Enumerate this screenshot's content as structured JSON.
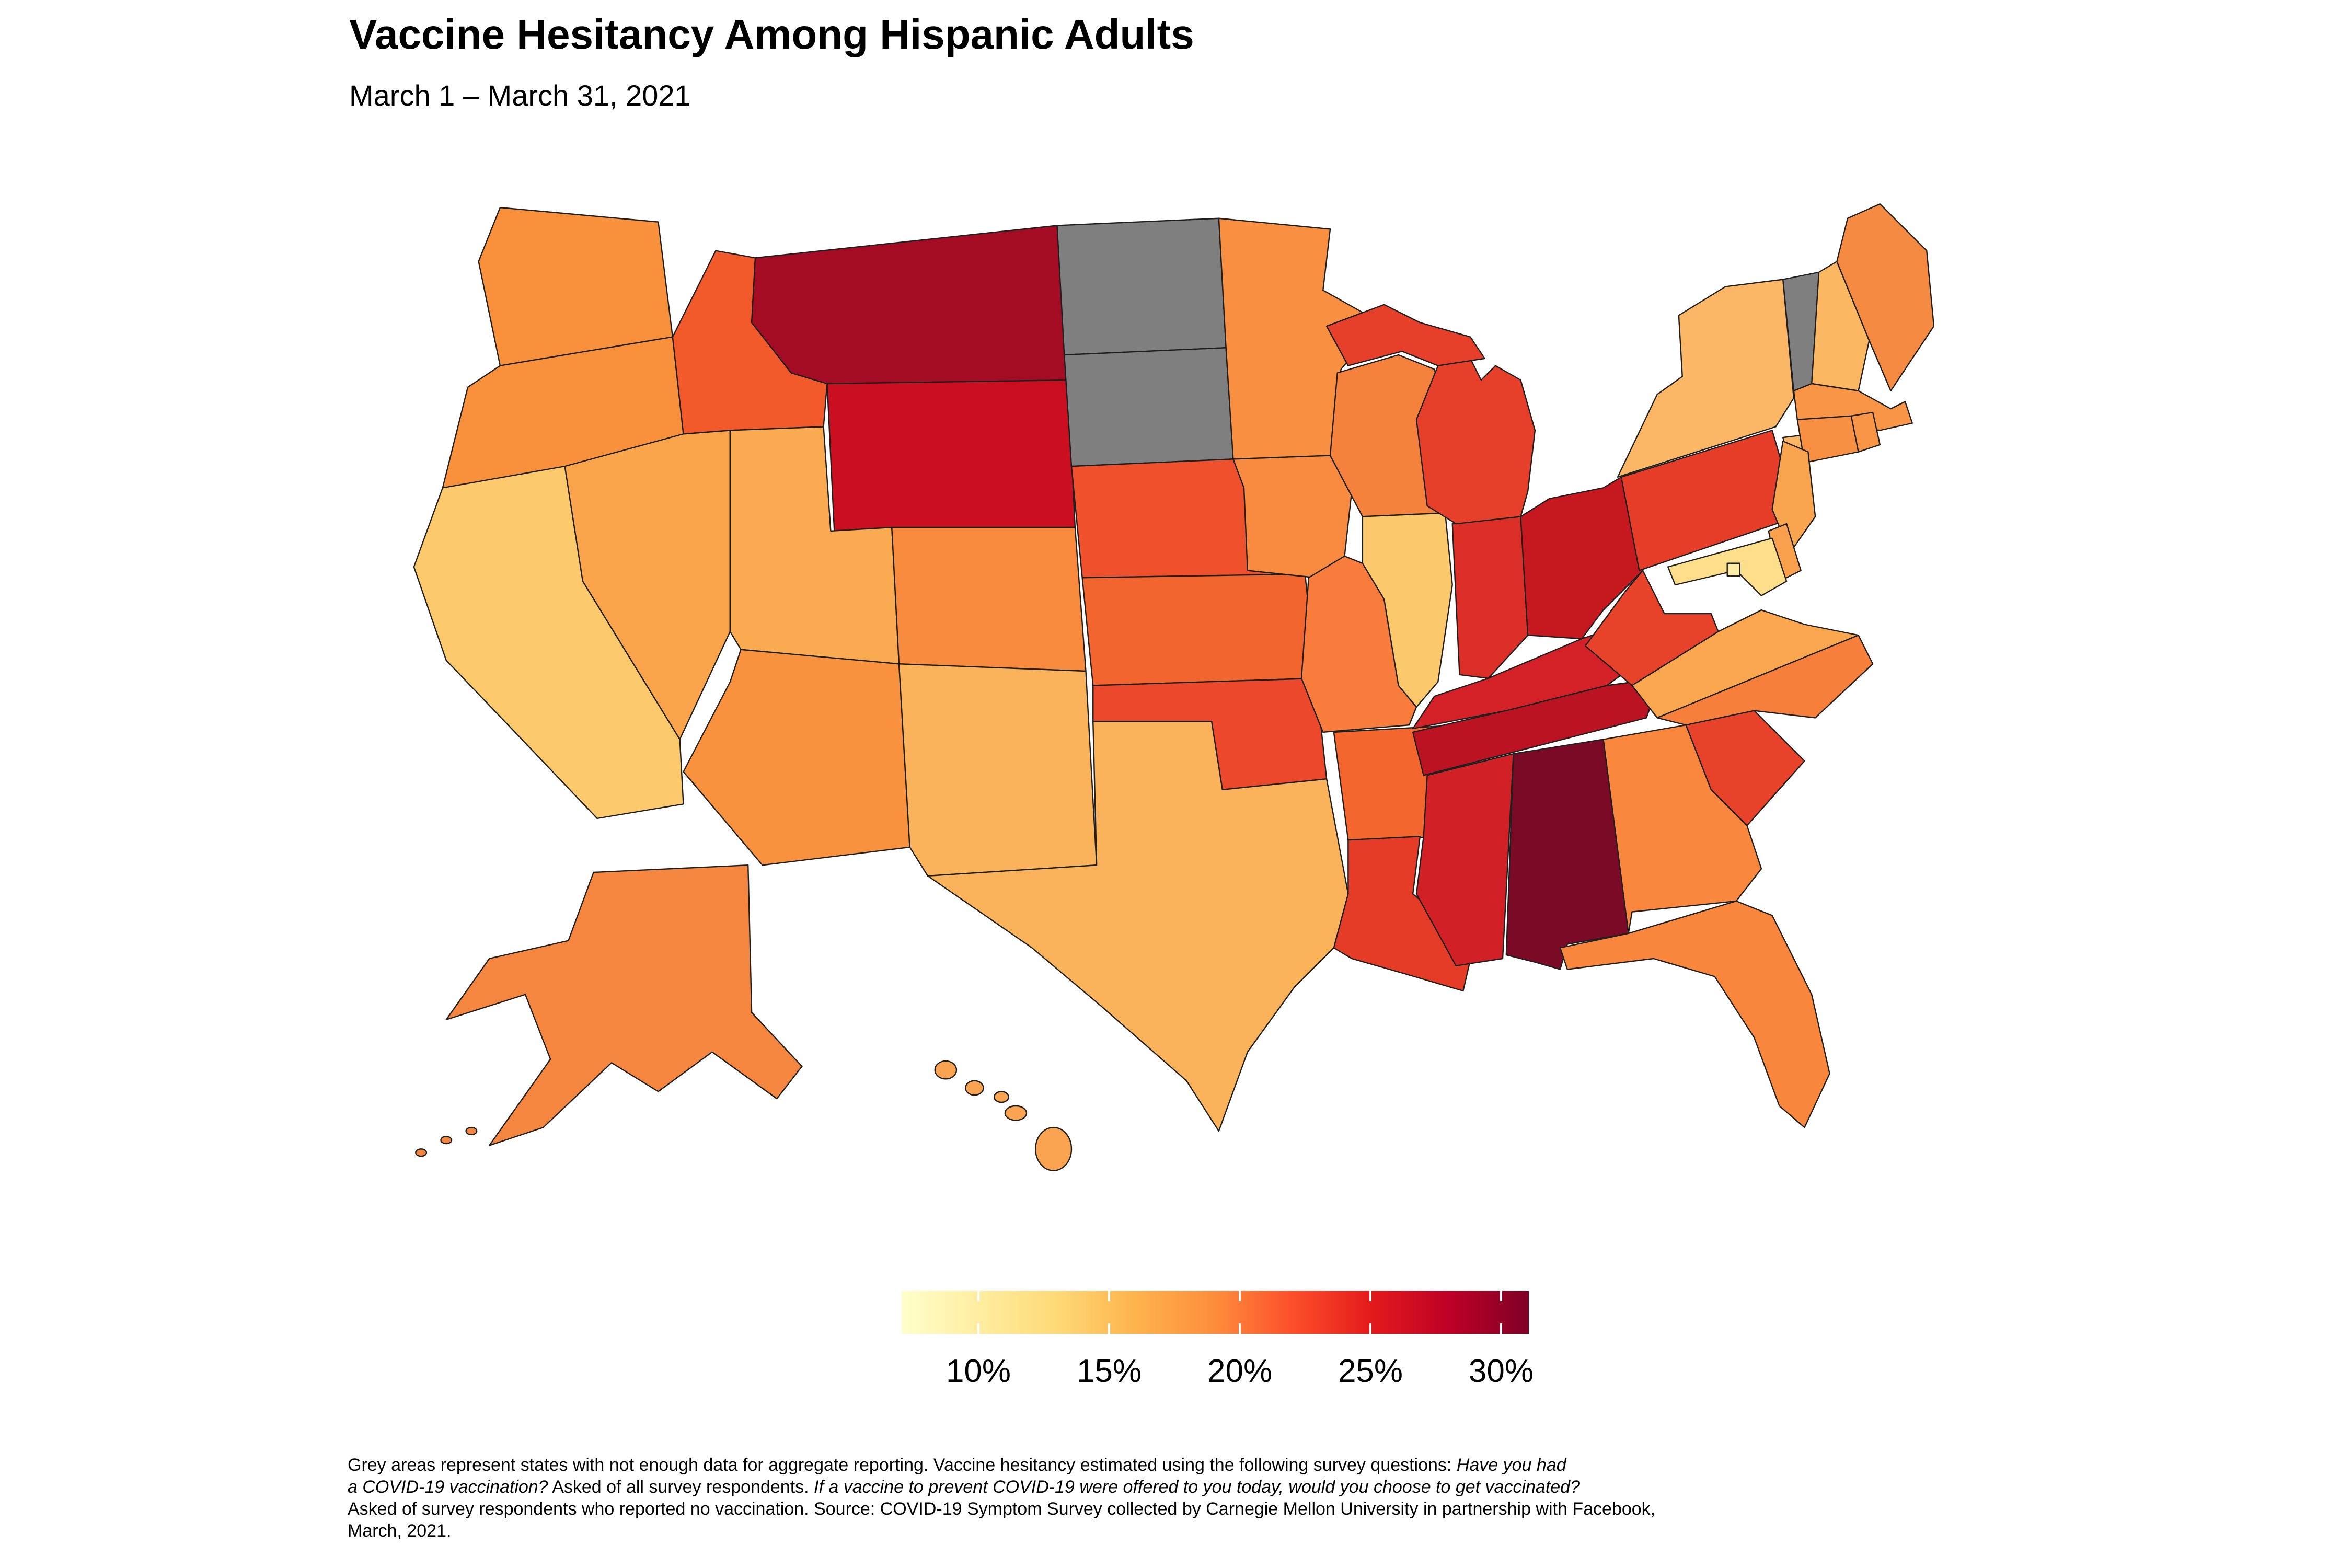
{
  "title": "Vaccine Hesitancy Among Hispanic Adults",
  "subtitle": "March 1 – March 31, 2021",
  "legend": {
    "tick_labels": [
      "10%",
      "15%",
      "20%",
      "25%",
      "30%"
    ],
    "gradient_stops": [
      "#ffffcc",
      "#ffeda0",
      "#fed976",
      "#feb24c",
      "#fd8d3c",
      "#fc4e2a",
      "#e31a1c",
      "#bd0026",
      "#800026"
    ],
    "no_data_color": "#7f7f7f"
  },
  "footnote": {
    "lines": [
      [
        {
          "text": "Grey areas represent states with not enough data for aggregate reporting. Vaccine hesitancy estimated using the following survey questions: ",
          "italic": false
        },
        {
          "text": "Have you had",
          "italic": true
        }
      ],
      [
        {
          "text": "a COVID-19 vaccination?",
          "italic": true
        },
        {
          "text": " Asked of all survey respondents. ",
          "italic": false
        },
        {
          "text": "If a vaccine to prevent COVID-19 were offered to you today, would you choose to get vaccinated?",
          "italic": true
        }
      ],
      [
        {
          "text": "Asked of survey respondents who reported no vaccination. Source: COVID-19 Symptom Survey collected by Carnegie Mellon University in partnership with Facebook,",
          "italic": false
        }
      ],
      [
        {
          "text": "March, 2021.",
          "italic": false
        }
      ]
    ]
  },
  "chart_data": {
    "type": "choropleth",
    "title": "Vaccine Hesitancy Among Hispanic Adults",
    "subtitle": "March 1 – March 31, 2021",
    "metric": "Estimated vaccine hesitancy among Hispanic adults (%)",
    "legend_position": "bottom-center",
    "scale": {
      "palette": "YlOrRd",
      "min_pct": 7,
      "max_pct": 31,
      "ticks_pct": [
        10,
        15,
        20,
        25,
        30
      ],
      "values_estimated_from_color_scale": true
    },
    "no_data_states": [
      "North Dakota",
      "South Dakota",
      "Vermont"
    ],
    "states": [
      {
        "abbr": "AL",
        "name": "Alabama",
        "fill": "#7A0A25",
        "value_pct_estimated": 30.5
      },
      {
        "abbr": "AK",
        "name": "Alaska",
        "fill": "#F58640",
        "value_pct_estimated": 18
      },
      {
        "abbr": "AZ",
        "name": "Arizona",
        "fill": "#F9923F",
        "value_pct_estimated": 17
      },
      {
        "abbr": "AR",
        "name": "Arkansas",
        "fill": "#F3672F",
        "value_pct_estimated": 19.5
      },
      {
        "abbr": "CA",
        "name": "California",
        "fill": "#FCCA6D",
        "value_pct_estimated": 13
      },
      {
        "abbr": "CO",
        "name": "Colorado",
        "fill": "#F98B3F",
        "value_pct_estimated": 17.5
      },
      {
        "abbr": "CT",
        "name": "Connecticut",
        "fill": "#F89044",
        "value_pct_estimated": 16.5
      },
      {
        "abbr": "DE",
        "name": "Delaware",
        "fill": "#F9A04C",
        "value_pct_estimated": 16
      },
      {
        "abbr": "DC",
        "name": "District of Columbia",
        "fill": "#FDECA6",
        "value_pct_estimated": 11.5
      },
      {
        "abbr": "FL",
        "name": "Florida",
        "fill": "#F8863D",
        "value_pct_estimated": 17.5
      },
      {
        "abbr": "GA",
        "name": "Georgia",
        "fill": "#F9873E",
        "value_pct_estimated": 17.5
      },
      {
        "abbr": "HI",
        "name": "Hawaii",
        "fill": "#FAA351",
        "value_pct_estimated": 16
      },
      {
        "abbr": "ID",
        "name": "Idaho",
        "fill": "#F25A2C",
        "value_pct_estimated": 20.5
      },
      {
        "abbr": "IL",
        "name": "Illinois",
        "fill": "#FBC96C",
        "value_pct_estimated": 13
      },
      {
        "abbr": "IN",
        "name": "Indiana",
        "fill": "#DC2F28",
        "value_pct_estimated": 22.5
      },
      {
        "abbr": "IA",
        "name": "Iowa",
        "fill": "#F98B41",
        "value_pct_estimated": 17
      },
      {
        "abbr": "KS",
        "name": "Kansas",
        "fill": "#F3652F",
        "value_pct_estimated": 19.5
      },
      {
        "abbr": "KY",
        "name": "Kentucky",
        "fill": "#D32127",
        "value_pct_estimated": 23.5
      },
      {
        "abbr": "LA",
        "name": "Louisiana",
        "fill": "#E53C28",
        "value_pct_estimated": 22
      },
      {
        "abbr": "ME",
        "name": "Maine",
        "fill": "#F58B42",
        "value_pct_estimated": 18
      },
      {
        "abbr": "MD",
        "name": "Maryland",
        "fill": "#FCDE8B",
        "value_pct_estimated": 12.5
      },
      {
        "abbr": "MA",
        "name": "Massachusetts",
        "fill": "#F89546",
        "value_pct_estimated": 16.5
      },
      {
        "abbr": "MI",
        "name": "Michigan",
        "fill": "#E6402A",
        "value_pct_estimated": 22
      },
      {
        "abbr": "MN",
        "name": "Minnesota",
        "fill": "#F98F41",
        "value_pct_estimated": 17
      },
      {
        "abbr": "MS",
        "name": "Mississippi",
        "fill": "#D12026",
        "value_pct_estimated": 23.5
      },
      {
        "abbr": "MO",
        "name": "Missouri",
        "fill": "#F87C3C",
        "value_pct_estimated": 18
      },
      {
        "abbr": "MT",
        "name": "Montana",
        "fill": "#A40C23",
        "value_pct_estimated": 27.5
      },
      {
        "abbr": "NE",
        "name": "Nebraska",
        "fill": "#EF512C",
        "value_pct_estimated": 20.5
      },
      {
        "abbr": "NV",
        "name": "Nevada",
        "fill": "#FAA44C",
        "value_pct_estimated": 15.5
      },
      {
        "abbr": "NH",
        "name": "New Hampshire",
        "fill": "#FBB761",
        "value_pct_estimated": 15
      },
      {
        "abbr": "NJ",
        "name": "New Jersey",
        "fill": "#F9A54F",
        "value_pct_estimated": 16
      },
      {
        "abbr": "NM",
        "name": "New Mexico",
        "fill": "#FBB35B",
        "value_pct_estimated": 14.5
      },
      {
        "abbr": "NY",
        "name": "New York",
        "fill": "#FBB765",
        "value_pct_estimated": 15
      },
      {
        "abbr": "NC",
        "name": "North Carolina",
        "fill": "#F57F3B",
        "value_pct_estimated": 18
      },
      {
        "abbr": "ND",
        "name": "North Dakota",
        "fill": "#7F7F7F",
        "value_pct_estimated": null
      },
      {
        "abbr": "OH",
        "name": "Ohio",
        "fill": "#C5181F",
        "value_pct_estimated": 25
      },
      {
        "abbr": "OK",
        "name": "Oklahoma",
        "fill": "#EC482B",
        "value_pct_estimated": 21
      },
      {
        "abbr": "OR",
        "name": "Oregon",
        "fill": "#F9913C",
        "value_pct_estimated": 17
      },
      {
        "abbr": "PA",
        "name": "Pennsylvania",
        "fill": "#E63D29",
        "value_pct_estimated": 22
      },
      {
        "abbr": "RI",
        "name": "Rhode Island",
        "fill": "#F89546",
        "value_pct_estimated": 16.5
      },
      {
        "abbr": "SC",
        "name": "South Carolina",
        "fill": "#E7422A",
        "value_pct_estimated": 22
      },
      {
        "abbr": "SD",
        "name": "South Dakota",
        "fill": "#7F7F7F",
        "value_pct_estimated": null
      },
      {
        "abbr": "TN",
        "name": "Tennessee",
        "fill": "#BB1321",
        "value_pct_estimated": 26
      },
      {
        "abbr": "TX",
        "name": "Texas",
        "fill": "#FBB35B",
        "value_pct_estimated": 14.5
      },
      {
        "abbr": "UT",
        "name": "Utah",
        "fill": "#FAAB51",
        "value_pct_estimated": 15
      },
      {
        "abbr": "VT",
        "name": "Vermont",
        "fill": "#7F7F7F",
        "value_pct_estimated": null
      },
      {
        "abbr": "VA",
        "name": "Virginia",
        "fill": "#FAA74F",
        "value_pct_estimated": 16
      },
      {
        "abbr": "WA",
        "name": "Washington",
        "fill": "#F9913C",
        "value_pct_estimated": 17
      },
      {
        "abbr": "WV",
        "name": "West Virginia",
        "fill": "#E7432B",
        "value_pct_estimated": 22
      },
      {
        "abbr": "WI",
        "name": "Wisconsin",
        "fill": "#F5823C",
        "value_pct_estimated": 18
      },
      {
        "abbr": "WY",
        "name": "Wyoming",
        "fill": "#C90F20",
        "value_pct_estimated": 25
      }
    ]
  }
}
